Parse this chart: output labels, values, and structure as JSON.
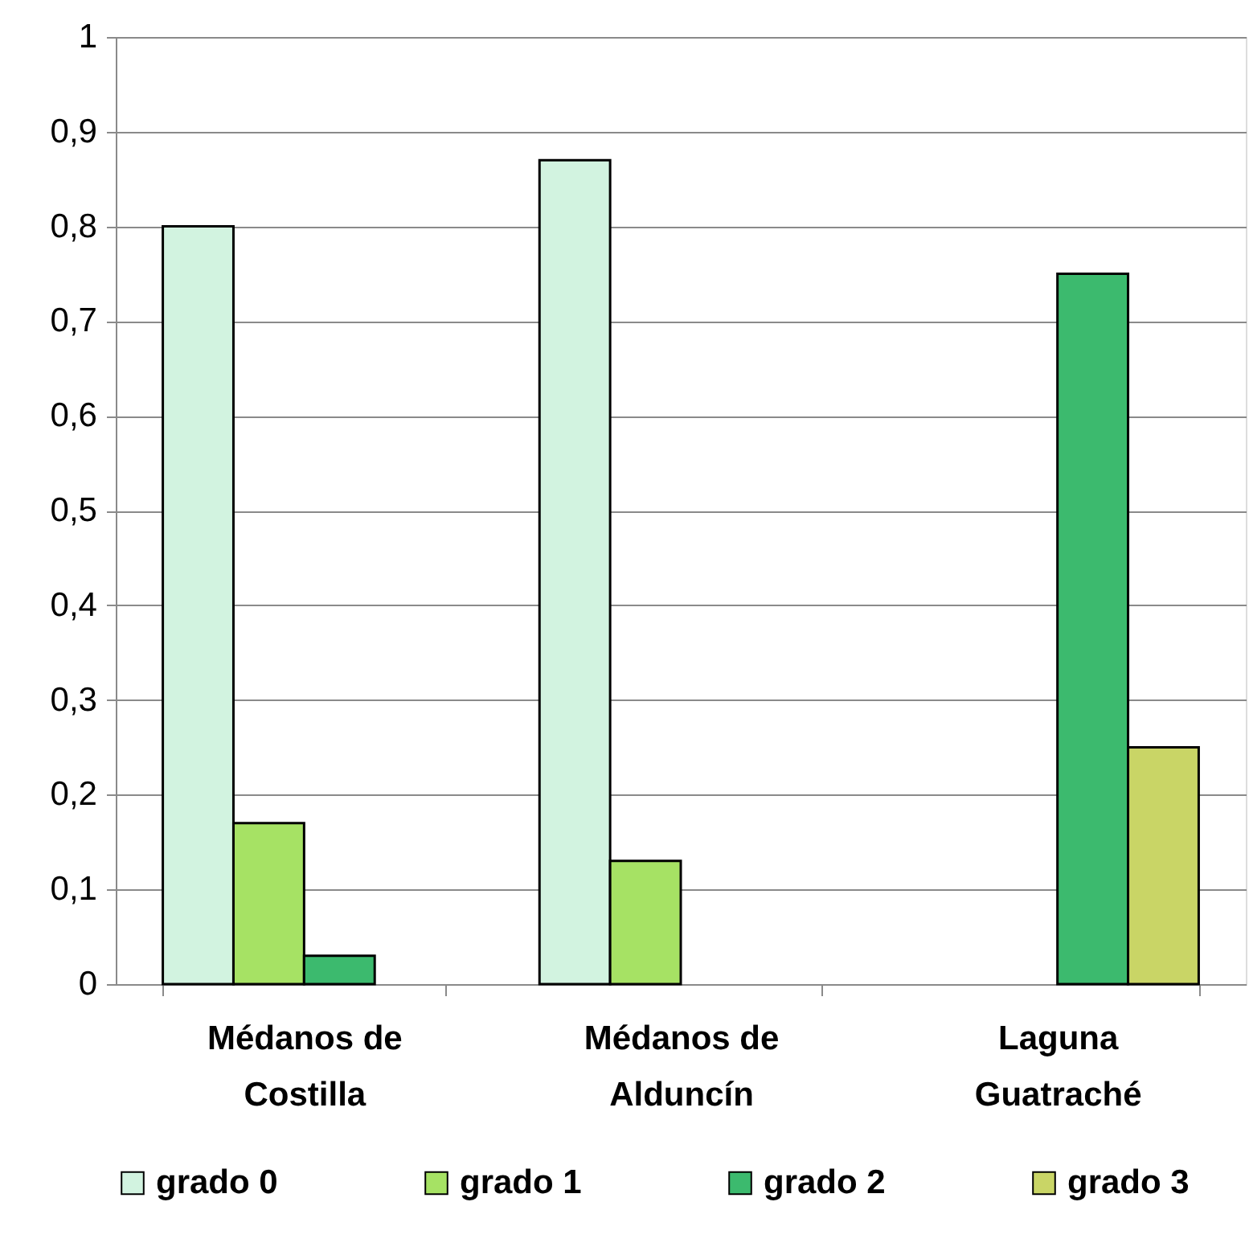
{
  "chart_data": {
    "type": "bar",
    "categories": [
      "Médanos de Costilla",
      "Médanos de Alduncín",
      "Laguna Guatraché"
    ],
    "series": [
      {
        "name": "grado 0",
        "color": "#d2f3e0",
        "values": [
          0.8,
          0.87,
          null
        ]
      },
      {
        "name": "grado 1",
        "color": "#a6e264",
        "values": [
          0.17,
          0.13,
          null
        ]
      },
      {
        "name": "grado 2",
        "color": "#3cba6e",
        "values": [
          0.03,
          null,
          0.75
        ]
      },
      {
        "name": "grado 3",
        "color": "#c9d566",
        "values": [
          null,
          null,
          0.25
        ]
      }
    ],
    "ylim": [
      0,
      1
    ],
    "yticks": [
      0,
      {
        "value": 0.1,
        "label": "0,1"
      },
      {
        "value": 0.2,
        "label": "0,2"
      },
      {
        "value": 0.3,
        "label": "0,3"
      },
      {
        "value": 0.4,
        "label": "0,4"
      },
      {
        "value": 0.5,
        "label": "0,5"
      },
      {
        "value": 0.6,
        "label": "0,6"
      },
      {
        "value": 0.7,
        "label": "0,7"
      },
      {
        "value": 0.8,
        "label": "0,8"
      },
      {
        "value": 0.9,
        "label": "0,9"
      },
      1
    ],
    "grid": "y",
    "legend": "bottom"
  }
}
